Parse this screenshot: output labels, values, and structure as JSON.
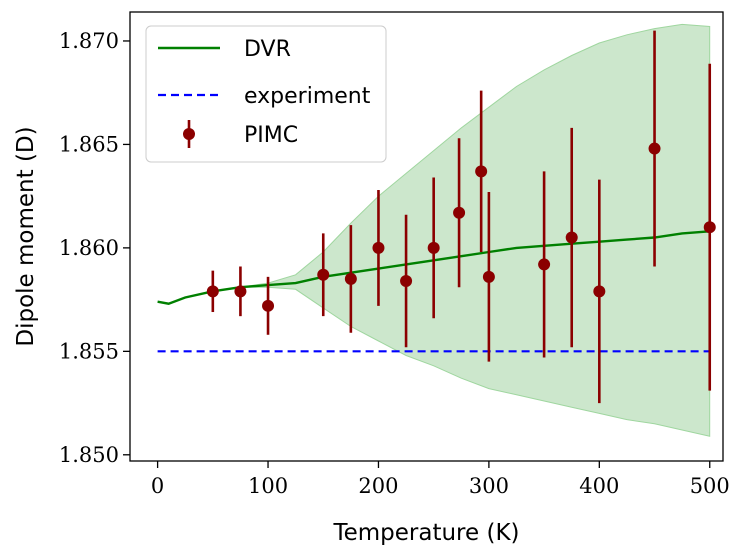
{
  "chart_data": {
    "type": "scatter",
    "title": "",
    "xlabel": "Temperature (K)",
    "ylabel": "Dipole moment (D)",
    "xlim": [
      -25,
      512
    ],
    "ylim": [
      1.8497,
      1.8714
    ],
    "xticks": [
      0,
      100,
      200,
      300,
      400,
      500
    ],
    "xtick_labels": [
      "0",
      "100",
      "200",
      "300",
      "400",
      "500"
    ],
    "yticks": [
      1.85,
      1.855,
      1.86,
      1.865,
      1.87
    ],
    "ytick_labels": [
      "1.850",
      "1.855",
      "1.860",
      "1.865",
      "1.870"
    ],
    "grid": false,
    "legend_position": "top-left",
    "colors": {
      "dvr": "#008000",
      "band_fill": "#7fc47f",
      "band_edge": "#9fd69f",
      "experiment": "#0000ff",
      "pimc": "#8b0000"
    },
    "series": [
      {
        "name": "DVR",
        "kind": "line",
        "x": [
          0,
          10,
          25,
          50,
          75,
          100,
          125,
          150,
          175,
          200,
          225,
          250,
          275,
          300,
          325,
          350,
          375,
          400,
          425,
          450,
          475,
          500
        ],
        "y": [
          1.8574,
          1.8573,
          1.8576,
          1.8579,
          1.8581,
          1.8582,
          1.8583,
          1.8586,
          1.8588,
          1.859,
          1.8592,
          1.8594,
          1.8596,
          1.8598,
          1.86,
          1.8601,
          1.8602,
          1.8603,
          1.8604,
          1.8605,
          1.8607,
          1.8608
        ],
        "band_lower": [
          1.8574,
          1.8573,
          1.8576,
          1.8579,
          1.8581,
          1.8581,
          1.858,
          1.8571,
          1.8562,
          1.8555,
          1.8548,
          1.8543,
          1.8537,
          1.8532,
          1.8529,
          1.8526,
          1.8523,
          1.852,
          1.8517,
          1.8515,
          1.8512,
          1.8509
        ],
        "band_upper": [
          1.8574,
          1.8573,
          1.8576,
          1.8579,
          1.8581,
          1.8583,
          1.8587,
          1.8598,
          1.8612,
          1.8625,
          1.8636,
          1.8647,
          1.8658,
          1.8668,
          1.8678,
          1.8686,
          1.8693,
          1.8699,
          1.8703,
          1.8706,
          1.8708,
          1.8707
        ]
      },
      {
        "name": "experiment",
        "kind": "dashed-line",
        "x": [
          0,
          500
        ],
        "y": [
          1.855,
          1.855
        ]
      },
      {
        "name": "PIMC",
        "kind": "errorbar",
        "x": [
          50,
          75,
          100,
          150,
          175,
          200,
          225,
          250,
          273,
          293,
          300,
          350,
          375,
          400,
          450,
          500
        ],
        "y": [
          1.8579,
          1.8579,
          1.8572,
          1.8587,
          1.8585,
          1.86,
          1.8584,
          1.86,
          1.8617,
          1.8637,
          1.8586,
          1.8592,
          1.8605,
          1.8579,
          1.8648,
          1.861
        ],
        "err": [
          0.001,
          0.0012,
          0.0014,
          0.002,
          0.0026,
          0.0028,
          0.0032,
          0.0034,
          0.0036,
          0.0039,
          0.0041,
          0.0045,
          0.0053,
          0.0054,
          0.0057,
          0.0079
        ]
      }
    ]
  }
}
